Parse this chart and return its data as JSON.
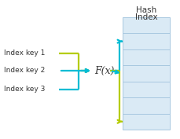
{
  "title_line1": "Hash",
  "title_line2": "Index",
  "index_labels": [
    "Index key 1",
    "Index key 2",
    "Index key 3"
  ],
  "fx_label": "F(x)",
  "color_green": "#b5cc00",
  "color_cyan": "#00bcd4",
  "bg_color": "#ffffff",
  "hash_bg": "#daeaf5",
  "hash_border": "#a8c8e0",
  "text_color": "#333333",
  "n_rows": 7,
  "lw": 1.6
}
